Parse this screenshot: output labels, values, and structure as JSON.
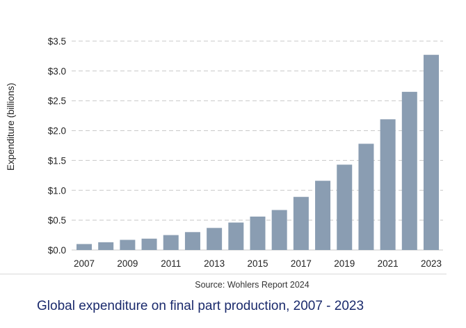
{
  "chart_data": {
    "type": "bar",
    "categories": [
      "2007",
      "2008",
      "2009",
      "2010",
      "2011",
      "2012",
      "2013",
      "2014",
      "2015",
      "2016",
      "2017",
      "2018",
      "2019",
      "2020",
      "2021",
      "2022",
      "2023"
    ],
    "values": [
      0.1,
      0.13,
      0.17,
      0.19,
      0.25,
      0.3,
      0.37,
      0.46,
      0.56,
      0.67,
      0.89,
      1.16,
      1.43,
      1.78,
      2.19,
      2.65,
      3.27
    ],
    "x_tick_labels": [
      "2007",
      "2009",
      "2011",
      "2013",
      "2015",
      "2017",
      "2019",
      "2021",
      "2023"
    ],
    "y_ticks": [
      0,
      0.5,
      1.0,
      1.5,
      2.0,
      2.5,
      3.0,
      3.5
    ],
    "y_tick_labels": [
      "$0.0",
      "$0.5",
      "$1.0",
      "$1.5",
      "$2.0",
      "$2.5",
      "$3.0",
      "$3.5"
    ],
    "ylim": [
      0,
      3.5
    ],
    "ylabel": "Expenditure (billions)",
    "xlabel": "",
    "grid": "horizontal-dashed",
    "bar_color": "#8a9db2",
    "grid_color": "#c8c8c8"
  },
  "source": "Source: Wohlers Report 2024",
  "caption": "Global expenditure on final part production, 2007 - 2023",
  "caption_color": "#1a2a6c"
}
